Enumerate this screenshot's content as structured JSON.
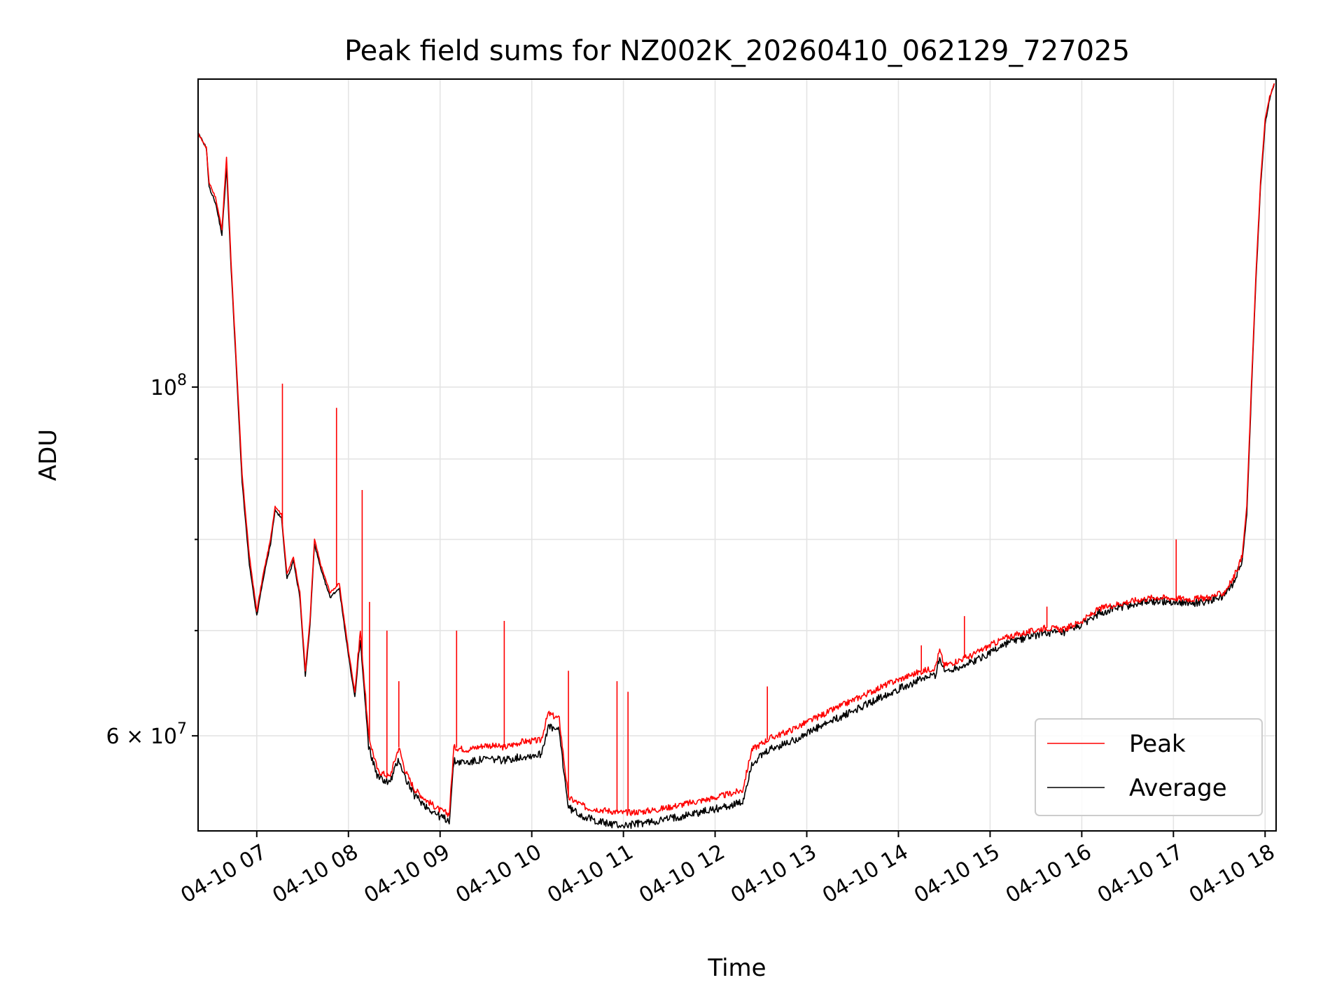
{
  "chart_data": {
    "type": "line",
    "title": "Peak field sums for NZ002K_20260410_062129_727025",
    "xlabel": "Time",
    "ylabel": "ADU",
    "yscale": "log",
    "grid": true,
    "legend_position": "lower-right",
    "x_range": [
      "2026-04-10 06:21",
      "2026-04-10 18:07"
    ],
    "y_range": [
      52200000,
      157000000
    ],
    "x_ticks": [
      "04-10 07",
      "04-10 08",
      "04-10 09",
      "04-10 10",
      "04-10 11",
      "04-10 12",
      "04-10 13",
      "04-10 14",
      "04-10 15",
      "04-10 16",
      "04-10 17",
      "04-10 18"
    ],
    "y_ticks": [
      {
        "value": 100000000,
        "base": "10",
        "exp": "8",
        "coef": ""
      },
      {
        "value": 60000000,
        "base": "10",
        "exp": "7",
        "coef": "6"
      }
    ],
    "y_minor_ticks": [
      70000000,
      80000000,
      90000000
    ],
    "x_unit": "hours since 2026-04-10 00:00",
    "series": [
      {
        "name": "Peak",
        "color": "#ff0000",
        "points": [
          [
            6.36,
            145000000
          ],
          [
            6.45,
            142000000
          ],
          [
            6.48,
            135000000
          ],
          [
            6.55,
            132000000
          ],
          [
            6.62,
            126000000
          ],
          [
            6.67,
            140000000
          ],
          [
            6.72,
            120000000
          ],
          [
            6.78,
            103000000
          ],
          [
            6.84,
            88000000
          ],
          [
            6.92,
            78000000
          ],
          [
            7.0,
            72000000
          ],
          [
            7.07,
            76000000
          ],
          [
            7.15,
            80000000
          ],
          [
            7.2,
            84000000
          ],
          [
            7.27,
            83000000
          ],
          [
            7.33,
            76000000
          ],
          [
            7.4,
            78000000
          ],
          [
            7.47,
            74000000
          ],
          [
            7.53,
            66000000
          ],
          [
            7.58,
            71000000
          ],
          [
            7.63,
            80000000
          ],
          [
            7.7,
            77000000
          ],
          [
            7.8,
            74000000
          ],
          [
            7.9,
            75000000
          ],
          [
            8.0,
            68000000
          ],
          [
            8.07,
            64000000
          ],
          [
            8.13,
            70000000
          ],
          [
            8.22,
            60000000
          ],
          [
            8.32,
            57000000
          ],
          [
            8.45,
            56500000
          ],
          [
            8.55,
            59000000
          ],
          [
            8.62,
            57000000
          ],
          [
            8.72,
            55500000
          ],
          [
            8.85,
            54600000
          ],
          [
            9.0,
            53800000
          ],
          [
            9.1,
            53500000
          ],
          [
            9.15,
            59000000
          ],
          [
            9.3,
            58800000
          ],
          [
            9.5,
            59200000
          ],
          [
            9.7,
            59000000
          ],
          [
            9.9,
            59500000
          ],
          [
            10.1,
            59600000
          ],
          [
            10.18,
            62000000
          ],
          [
            10.3,
            61500000
          ],
          [
            10.35,
            58000000
          ],
          [
            10.4,
            54800000
          ],
          [
            10.6,
            54000000
          ],
          [
            10.8,
            53800000
          ],
          [
            11.0,
            53600000
          ],
          [
            11.2,
            53700000
          ],
          [
            11.4,
            53900000
          ],
          [
            11.6,
            54200000
          ],
          [
            11.8,
            54500000
          ],
          [
            12.0,
            54800000
          ],
          [
            12.3,
            55400000
          ],
          [
            12.4,
            58800000
          ],
          [
            12.6,
            59800000
          ],
          [
            12.8,
            60400000
          ],
          [
            13.0,
            61200000
          ],
          [
            13.3,
            62400000
          ],
          [
            13.6,
            63600000
          ],
          [
            13.9,
            64800000
          ],
          [
            14.2,
            65800000
          ],
          [
            14.4,
            66300000
          ],
          [
            14.45,
            68000000
          ],
          [
            14.5,
            66500000
          ],
          [
            14.8,
            67500000
          ],
          [
            15.0,
            68500000
          ],
          [
            15.2,
            69400000
          ],
          [
            15.4,
            69800000
          ],
          [
            15.6,
            70300000
          ],
          [
            15.8,
            70100000
          ],
          [
            16.0,
            71000000
          ],
          [
            16.2,
            72300000
          ],
          [
            16.4,
            72800000
          ],
          [
            16.6,
            73200000
          ],
          [
            16.8,
            73500000
          ],
          [
            17.0,
            73400000
          ],
          [
            17.2,
            73300000
          ],
          [
            17.4,
            73500000
          ],
          [
            17.55,
            74000000
          ],
          [
            17.65,
            75500000
          ],
          [
            17.75,
            78000000
          ],
          [
            17.8,
            84000000
          ],
          [
            17.85,
            100000000
          ],
          [
            17.9,
            118000000
          ],
          [
            17.95,
            135000000
          ],
          [
            18.0,
            148000000
          ],
          [
            18.05,
            153000000
          ],
          [
            18.1,
            156000000
          ]
        ],
        "spikes": [
          [
            7.28,
            100500000
          ],
          [
            7.87,
            97000000
          ],
          [
            8.15,
            86000000
          ],
          [
            8.23,
            73000000
          ],
          [
            8.42,
            70000000
          ],
          [
            8.55,
            65000000
          ],
          [
            9.18,
            70000000
          ],
          [
            9.7,
            71000000
          ],
          [
            10.4,
            66000000
          ],
          [
            10.93,
            65000000
          ],
          [
            11.05,
            64000000
          ],
          [
            12.57,
            64500000
          ],
          [
            14.25,
            68500000
          ],
          [
            14.72,
            71500000
          ],
          [
            15.62,
            72500000
          ],
          [
            17.03,
            80000000
          ]
        ]
      },
      {
        "name": "Average",
        "color": "#000000",
        "points": [
          [
            6.36,
            145000000
          ],
          [
            6.45,
            142000000
          ],
          [
            6.48,
            134000000
          ],
          [
            6.55,
            131000000
          ],
          [
            6.62,
            125000000
          ],
          [
            6.67,
            138000000
          ],
          [
            6.72,
            119000000
          ],
          [
            6.78,
            102000000
          ],
          [
            6.84,
            87000000
          ],
          [
            6.92,
            77000000
          ],
          [
            7.0,
            71500000
          ],
          [
            7.07,
            75500000
          ],
          [
            7.15,
            79500000
          ],
          [
            7.2,
            83500000
          ],
          [
            7.27,
            82500000
          ],
          [
            7.33,
            75500000
          ],
          [
            7.4,
            77500000
          ],
          [
            7.47,
            73500000
          ],
          [
            7.53,
            65500000
          ],
          [
            7.58,
            70500000
          ],
          [
            7.63,
            79500000
          ],
          [
            7.7,
            76500000
          ],
          [
            7.8,
            73500000
          ],
          [
            7.9,
            74500000
          ],
          [
            8.0,
            67500000
          ],
          [
            8.07,
            63500000
          ],
          [
            8.13,
            69000000
          ],
          [
            8.22,
            59000000
          ],
          [
            8.32,
            56500000
          ],
          [
            8.45,
            56000000
          ],
          [
            8.55,
            58000000
          ],
          [
            8.62,
            56400000
          ],
          [
            8.72,
            55000000
          ],
          [
            8.85,
            54100000
          ],
          [
            9.0,
            53300000
          ],
          [
            9.1,
            53000000
          ],
          [
            9.15,
            57800000
          ],
          [
            9.3,
            57700000
          ],
          [
            9.5,
            58000000
          ],
          [
            9.7,
            57900000
          ],
          [
            9.9,
            58200000
          ],
          [
            10.1,
            58400000
          ],
          [
            10.18,
            60800000
          ],
          [
            10.3,
            60400000
          ],
          [
            10.35,
            57000000
          ],
          [
            10.4,
            54000000
          ],
          [
            10.6,
            53200000
          ],
          [
            10.8,
            52800000
          ],
          [
            11.0,
            52600000
          ],
          [
            11.2,
            52800000
          ],
          [
            11.4,
            53000000
          ],
          [
            11.6,
            53300000
          ],
          [
            11.8,
            53600000
          ],
          [
            12.0,
            53900000
          ],
          [
            12.3,
            54400000
          ],
          [
            12.4,
            57600000
          ],
          [
            12.6,
            58800000
          ],
          [
            12.8,
            59400000
          ],
          [
            13.0,
            60200000
          ],
          [
            13.3,
            61400000
          ],
          [
            13.6,
            62600000
          ],
          [
            13.9,
            63900000
          ],
          [
            14.2,
            65000000
          ],
          [
            14.4,
            65600000
          ],
          [
            14.45,
            67300000
          ],
          [
            14.5,
            65900000
          ],
          [
            14.8,
            66800000
          ],
          [
            15.0,
            67800000
          ],
          [
            15.2,
            68800000
          ],
          [
            15.4,
            69300000
          ],
          [
            15.6,
            69800000
          ],
          [
            15.8,
            69700000
          ],
          [
            16.0,
            70600000
          ],
          [
            16.2,
            71900000
          ],
          [
            16.4,
            72400000
          ],
          [
            16.6,
            72800000
          ],
          [
            16.8,
            73100000
          ],
          [
            17.0,
            73000000
          ],
          [
            17.2,
            72900000
          ],
          [
            17.4,
            73100000
          ],
          [
            17.55,
            73600000
          ],
          [
            17.65,
            75000000
          ],
          [
            17.75,
            77500000
          ],
          [
            17.8,
            83000000
          ],
          [
            17.85,
            99000000
          ],
          [
            17.9,
            117000000
          ],
          [
            17.95,
            134000000
          ],
          [
            18.0,
            147000000
          ],
          [
            18.05,
            152500000
          ],
          [
            18.1,
            156000000
          ]
        ]
      }
    ]
  }
}
